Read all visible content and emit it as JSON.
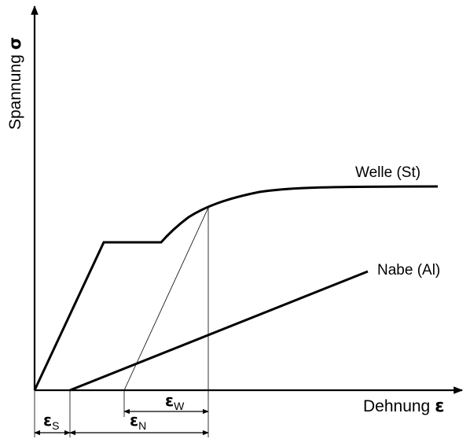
{
  "axes": {
    "y_label": "Spannung",
    "y_symbol": "σ",
    "x_label": "Dehnung",
    "x_symbol": "ε"
  },
  "curves": {
    "shaft_label": "Welle (St)",
    "hub_label": "Nabe (Al)"
  },
  "dimensions": {
    "eps_s": {
      "base": "ε",
      "sub": "S"
    },
    "eps_n": {
      "base": "ε",
      "sub": "N"
    },
    "eps_w": {
      "base": "ε",
      "sub": "W"
    }
  },
  "colors": {
    "line": "#000000",
    "background": "#ffffff"
  }
}
